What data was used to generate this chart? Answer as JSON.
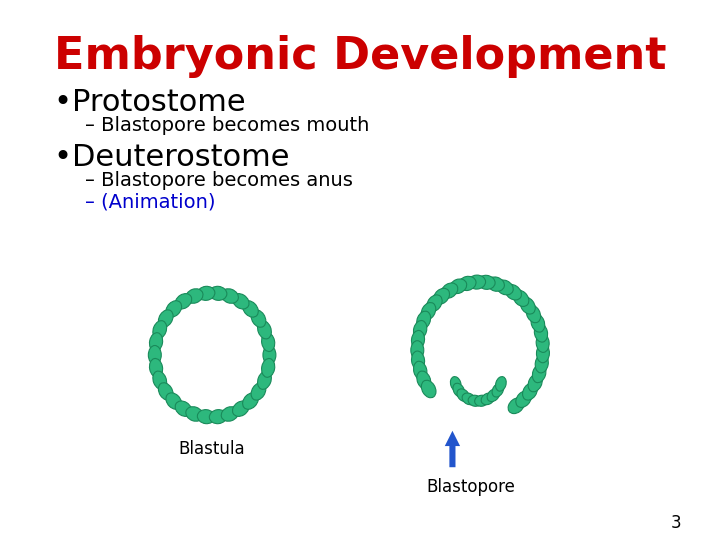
{
  "title": "Embryonic Development",
  "title_color": "#cc0000",
  "title_fontsize": 32,
  "bullet1": "Protostome",
  "sub1": "– Blastopore becomes mouth",
  "bullet2": "Deuterostome",
  "sub2a": "– Blastopore becomes anus",
  "sub2b": "– (Animation)",
  "sub2b_color": "#0000cc",
  "label_blastula": "Blastula",
  "label_blastopore": "Blastopore",
  "cell_color": "#2db87d",
  "cell_edge_color": "#1a8a5a",
  "arrow_color": "#2255cc",
  "page_number": "3",
  "background_color": "#ffffff"
}
